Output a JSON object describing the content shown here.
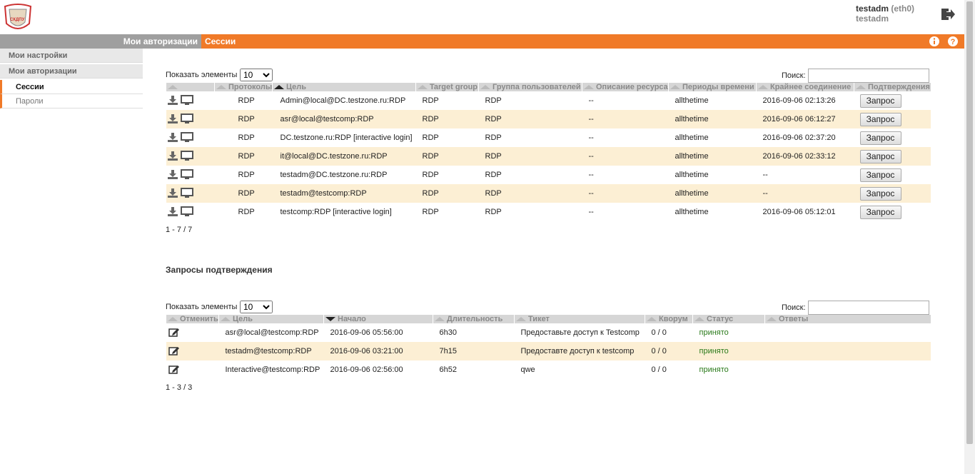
{
  "header": {
    "logo": "СКДПУ",
    "user": "testadm",
    "interface": "(eth0)",
    "login": "testadm"
  },
  "nav": {
    "tabs": [
      "Мои авторизации",
      "Сессии"
    ]
  },
  "sidebar": {
    "items": [
      "Мои настройки",
      "Мои авторизации",
      "Сессии",
      "Пароли"
    ]
  },
  "sessions": {
    "length_label": "Показать элементы",
    "length": "10",
    "search_label": "Поиск:",
    "columns": [
      "Протоколы",
      "Цель",
      "Target group",
      "Группа пользователей",
      "Описание ресурса",
      "Периоды времени",
      "Крайнее соединение",
      "Подтверждения"
    ],
    "rows": [
      [
        "RDP",
        "Admin@local@DC.testzone.ru:RDP",
        "RDP",
        "RDP",
        "--",
        "allthetime",
        "2016-09-06 02:13:26",
        "Запрос"
      ],
      [
        "RDP",
        "asr@local@testcomp:RDP",
        "RDP",
        "RDP",
        "--",
        "allthetime",
        "2016-09-06 06:12:27",
        "Запрос"
      ],
      [
        "RDP",
        "DC.testzone.ru:RDP [interactive login]",
        "RDP",
        "RDP",
        "--",
        "allthetime",
        "2016-09-06 02:37:20",
        "Запрос"
      ],
      [
        "RDP",
        "it@local@DC.testzone.ru:RDP",
        "RDP",
        "RDP",
        "--",
        "allthetime",
        "2016-09-06 02:33:12",
        "Запрос"
      ],
      [
        "RDP",
        "testadm@DC.testzone.ru:RDP",
        "RDP",
        "RDP",
        "--",
        "allthetime",
        "--",
        "Запрос"
      ],
      [
        "RDP",
        "testadm@testcomp:RDP",
        "RDP",
        "RDP",
        "--",
        "allthetime",
        "--",
        "Запрос"
      ],
      [
        "RDP",
        "testcomp:RDP [interactive login]",
        "RDP",
        "RDP",
        "--",
        "allthetime",
        "2016-09-06 05:12:01",
        "Запрос"
      ]
    ],
    "info": "1 - 7 / 7"
  },
  "approvals": {
    "title": "Запросы подтверждения",
    "length_label": "Показать элементы",
    "length": "10",
    "search_label": "Поиск:",
    "columns": [
      "Отменить",
      "Цель",
      "Начало",
      "Длительность",
      "Тикет",
      "Кворум",
      "Статус",
      "Ответы"
    ],
    "rows": [
      [
        "asr@local@testcomp:RDP",
        "2016-09-06 05:56:00",
        "6h30",
        "Предоставьте доступ к Testcomp",
        "0 / 0",
        "принято"
      ],
      [
        "testadm@testcomp:RDP",
        "2016-09-06 03:21:00",
        "7h15",
        "Предоставте доступ к testcomp",
        "0 / 0",
        "принято"
      ],
      [
        "Interactive@testcomp:RDP",
        "2016-09-06 02:56:00",
        "6h52",
        "qwe",
        "0 / 0",
        "принято"
      ]
    ],
    "info": "1 - 3 / 3"
  }
}
